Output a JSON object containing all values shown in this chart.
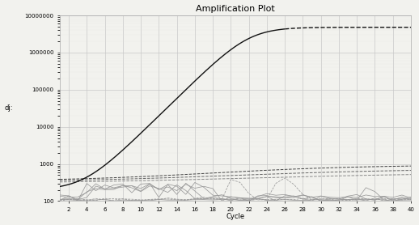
{
  "title": "Amplification Plot",
  "xlabel": "Cycle",
  "ylabel": "dj:",
  "xlim": [
    1,
    40
  ],
  "ylim_log": [
    100,
    10000000
  ],
  "xticks": [
    2,
    4,
    6,
    8,
    10,
    12,
    14,
    16,
    18,
    20,
    22,
    24,
    26,
    28,
    30,
    32,
    34,
    36,
    38,
    40
  ],
  "yticks_log": [
    100,
    1000,
    10000,
    100000,
    1000000,
    10000000
  ],
  "bg_color": "#f2f2ee",
  "grid_major_color": "#c8c8c8",
  "grid_minor_color": "#e0e0dc",
  "color_main": "#111111",
  "color_mid_dark": "#444444",
  "color_mid": "#666666",
  "color_mid_light": "#888888",
  "color_noisy": "#999999",
  "title_fontsize": 8,
  "label_fontsize": 6,
  "tick_fontsize": 5
}
